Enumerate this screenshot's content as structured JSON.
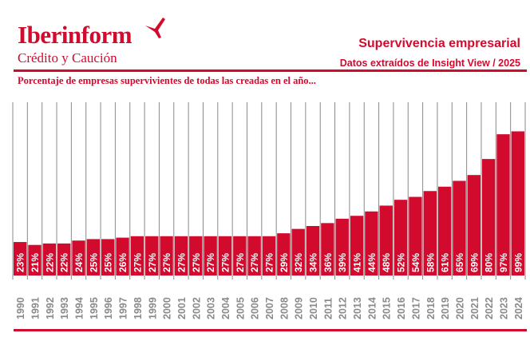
{
  "brand": {
    "name": "Iberinform",
    "tagline": "Crédito y Caución",
    "color": "#d20a2e"
  },
  "header": {
    "title": "Supervivencia empresarial",
    "subtitle": "Datos extraídos de Insight View / 2025"
  },
  "chart_data": {
    "type": "bar",
    "title": "Porcentaje de empresas supervivientes de todas las creadas en el año...",
    "xlabel": "",
    "ylabel": "",
    "categories": [
      "1990",
      "1991",
      "1992",
      "1993",
      "1994",
      "1995",
      "1996",
      "1997",
      "1998",
      "1999",
      "2000",
      "2001",
      "2002",
      "2003",
      "2004",
      "2005",
      "2006",
      "2007",
      "2008",
      "2009",
      "2010",
      "2011",
      "2012",
      "2013",
      "2014",
      "2015",
      "2016",
      "2017",
      "2018",
      "2019",
      "2020",
      "2021",
      "2022",
      "2023",
      "2024"
    ],
    "values": [
      23,
      21,
      22,
      22,
      24,
      25,
      25,
      26,
      27,
      27,
      27,
      27,
      27,
      27,
      27,
      27,
      27,
      27,
      29,
      32,
      34,
      36,
      39,
      41,
      44,
      48,
      52,
      54,
      58,
      61,
      65,
      69,
      80,
      97,
      99
    ],
    "value_suffix": "%",
    "ylim": [
      0,
      119
    ],
    "grid": "vertical separators",
    "bar_color": "#d20a2e",
    "label_color": "#ffffff",
    "tick_label_color": "#8a8a8a"
  }
}
